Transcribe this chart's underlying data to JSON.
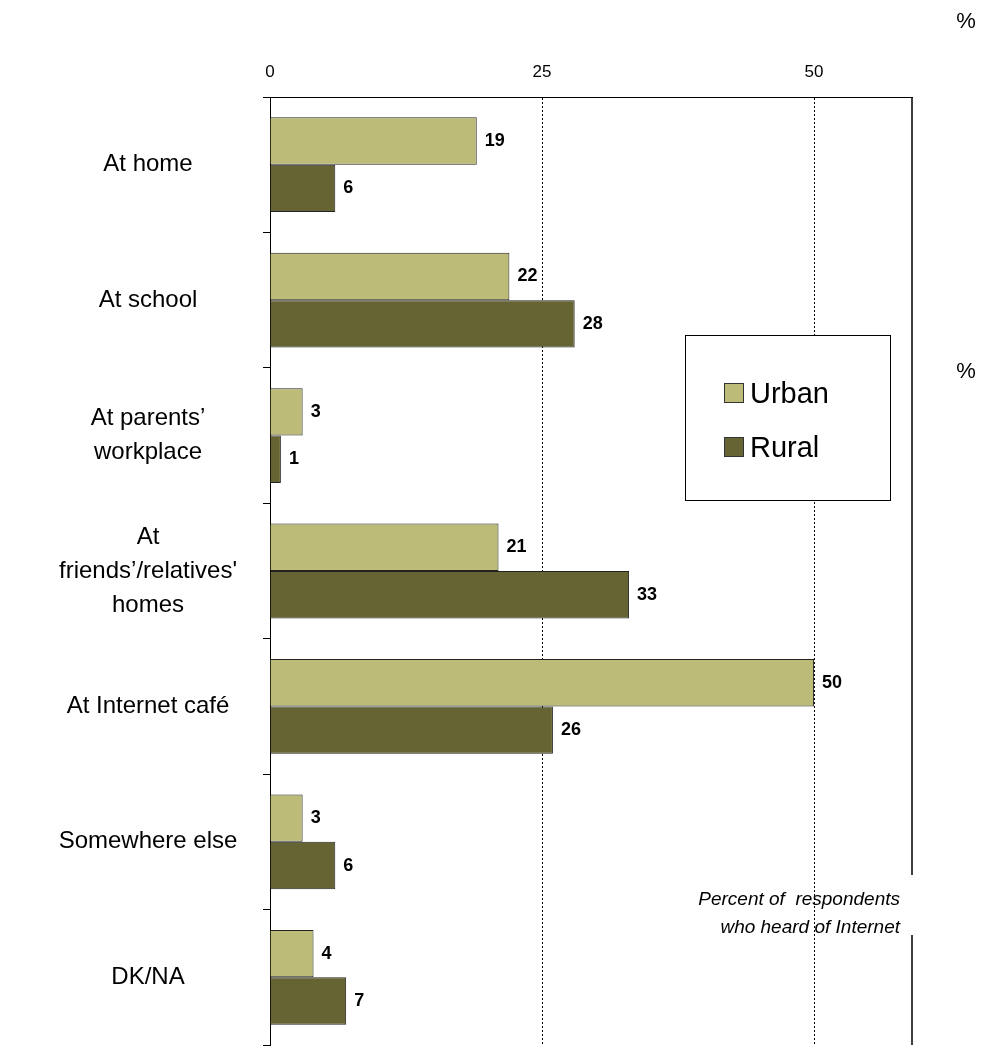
{
  "chart_data": {
    "type": "bar",
    "orientation": "horizontal",
    "categories": [
      "At home",
      "At school",
      "At parents’ workplace",
      "At friends’/relatives' homes",
      "At Internet café",
      "Somewhere else",
      "DK/NA"
    ],
    "series": [
      {
        "name": "Urban",
        "color": "#bdbb78",
        "values": [
          19,
          22,
          3,
          21,
          50,
          3,
          4
        ]
      },
      {
        "name": "Rural",
        "color": "#676434",
        "values": [
          6,
          28,
          1,
          33,
          26,
          6,
          7
        ]
      }
    ],
    "xlim": [
      0,
      59
    ],
    "xticks": [
      0,
      25,
      50
    ],
    "grid": "x",
    "legend": "right",
    "data_labels": true,
    "annotations": [
      "%",
      "%",
      "Percent of  respondents who heard of Internet"
    ]
  }
}
